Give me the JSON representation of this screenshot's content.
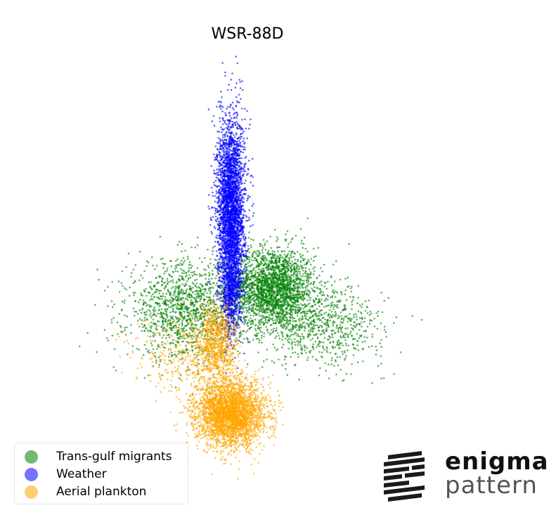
{
  "chart_data": {
    "type": "scatter",
    "title": "WSR-88D",
    "xlabel": "",
    "ylabel": "",
    "axes_visible": false,
    "grid": false,
    "legend_placement": "lower-left",
    "series": [
      {
        "name": "Trans-gulf migrants",
        "color": "#008000",
        "clusters": [
          {
            "cx": 0.17,
            "cy": 0.26,
            "sx": 0.085,
            "sy": 0.075,
            "n": 2400
          },
          {
            "cx": -0.18,
            "cy": 0.18,
            "sx": 0.12,
            "sy": 0.09,
            "n": 1400
          },
          {
            "cx": 0.38,
            "cy": 0.12,
            "sx": 0.12,
            "sy": 0.07,
            "n": 700
          }
        ]
      },
      {
        "name": "Weather",
        "color": "#0000ff",
        "clusters": [
          {
            "cx": 0.0,
            "cy": 0.55,
            "sx": 0.028,
            "sy": 0.17,
            "n": 3200
          },
          {
            "cx": 0.0,
            "cy": 0.24,
            "sx": 0.02,
            "sy": 0.08,
            "n": 600
          }
        ]
      },
      {
        "name": "Aerial plankton",
        "color": "#ffa500",
        "clusters": [
          {
            "cx": 0.0,
            "cy": -0.2,
            "sx": 0.07,
            "sy": 0.06,
            "n": 3200
          },
          {
            "cx": -0.06,
            "cy": 0.05,
            "sx": 0.04,
            "sy": 0.08,
            "n": 900
          },
          {
            "cx": -0.2,
            "cy": 0.0,
            "sx": 0.1,
            "sy": 0.08,
            "n": 300
          }
        ]
      }
    ],
    "xlim": [
      -0.85,
      1.0
    ],
    "ylim": [
      -0.5,
      1.1
    ]
  },
  "logo": {
    "word1": "enigma",
    "word2": "pattern"
  }
}
